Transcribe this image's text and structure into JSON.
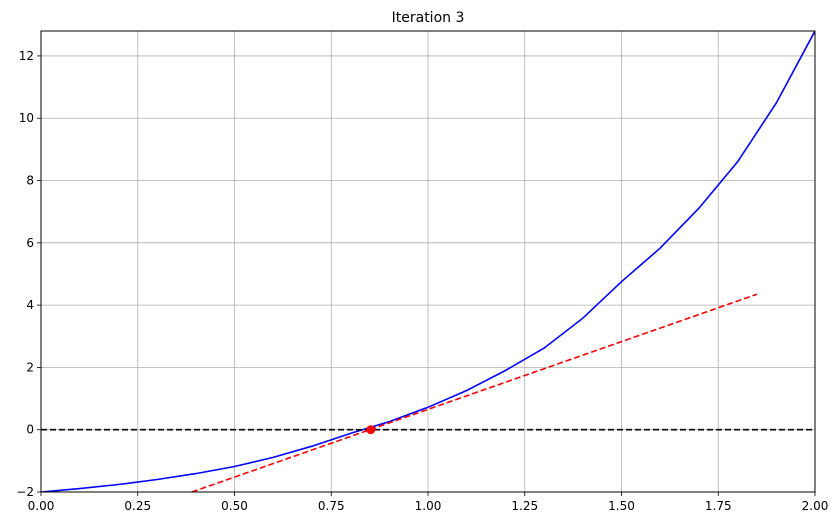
{
  "chart_data": {
    "type": "line",
    "title": "Iteration 3",
    "xlabel": "",
    "ylabel": "",
    "xlim": [
      0.0,
      2.0
    ],
    "ylim": [
      -2.0,
      12.8
    ],
    "xticks": [
      "0.00",
      "0.25",
      "0.50",
      "0.75",
      "1.00",
      "1.25",
      "1.50",
      "1.75",
      "2.00"
    ],
    "xtick_values": [
      0.0,
      0.25,
      0.5,
      0.75,
      1.0,
      1.25,
      1.5,
      1.75,
      2.0
    ],
    "yticks": [
      "−2",
      "0",
      "2",
      "4",
      "6",
      "8",
      "10",
      "12"
    ],
    "ytick_values": [
      -2,
      0,
      2,
      4,
      6,
      8,
      10,
      12
    ],
    "grid": true,
    "series": [
      {
        "role": "function curve",
        "color": "#0000ff",
        "style": "solid",
        "x": [
          0.0,
          0.1,
          0.2,
          0.3,
          0.4,
          0.5,
          0.6,
          0.7,
          0.8,
          0.9,
          1.0,
          1.1,
          1.2,
          1.3,
          1.4,
          1.5,
          1.6,
          1.7,
          1.8,
          1.9,
          2.0
        ],
        "y": [
          -2.0,
          -1.89,
          -1.76,
          -1.6,
          -1.41,
          -1.18,
          -0.89,
          -0.53,
          -0.12,
          0.26,
          0.72,
          1.26,
          1.9,
          2.62,
          3.58,
          4.75,
          5.83,
          7.11,
          8.6,
          10.49,
          12.8
        ]
      },
      {
        "role": "tangent line",
        "color": "#ff0000",
        "style": "dashed",
        "x": [
          0.39,
          1.85
        ],
        "y": [
          -2.0,
          4.35
        ]
      },
      {
        "role": "zero line",
        "color": "#000000",
        "style": "dashed",
        "x": [
          0.0,
          2.0
        ],
        "y": [
          0.0,
          0.0
        ]
      }
    ],
    "points": [
      {
        "role": "current estimate",
        "color": "#ff0000",
        "x": 0.852,
        "y": 0.0
      }
    ]
  }
}
